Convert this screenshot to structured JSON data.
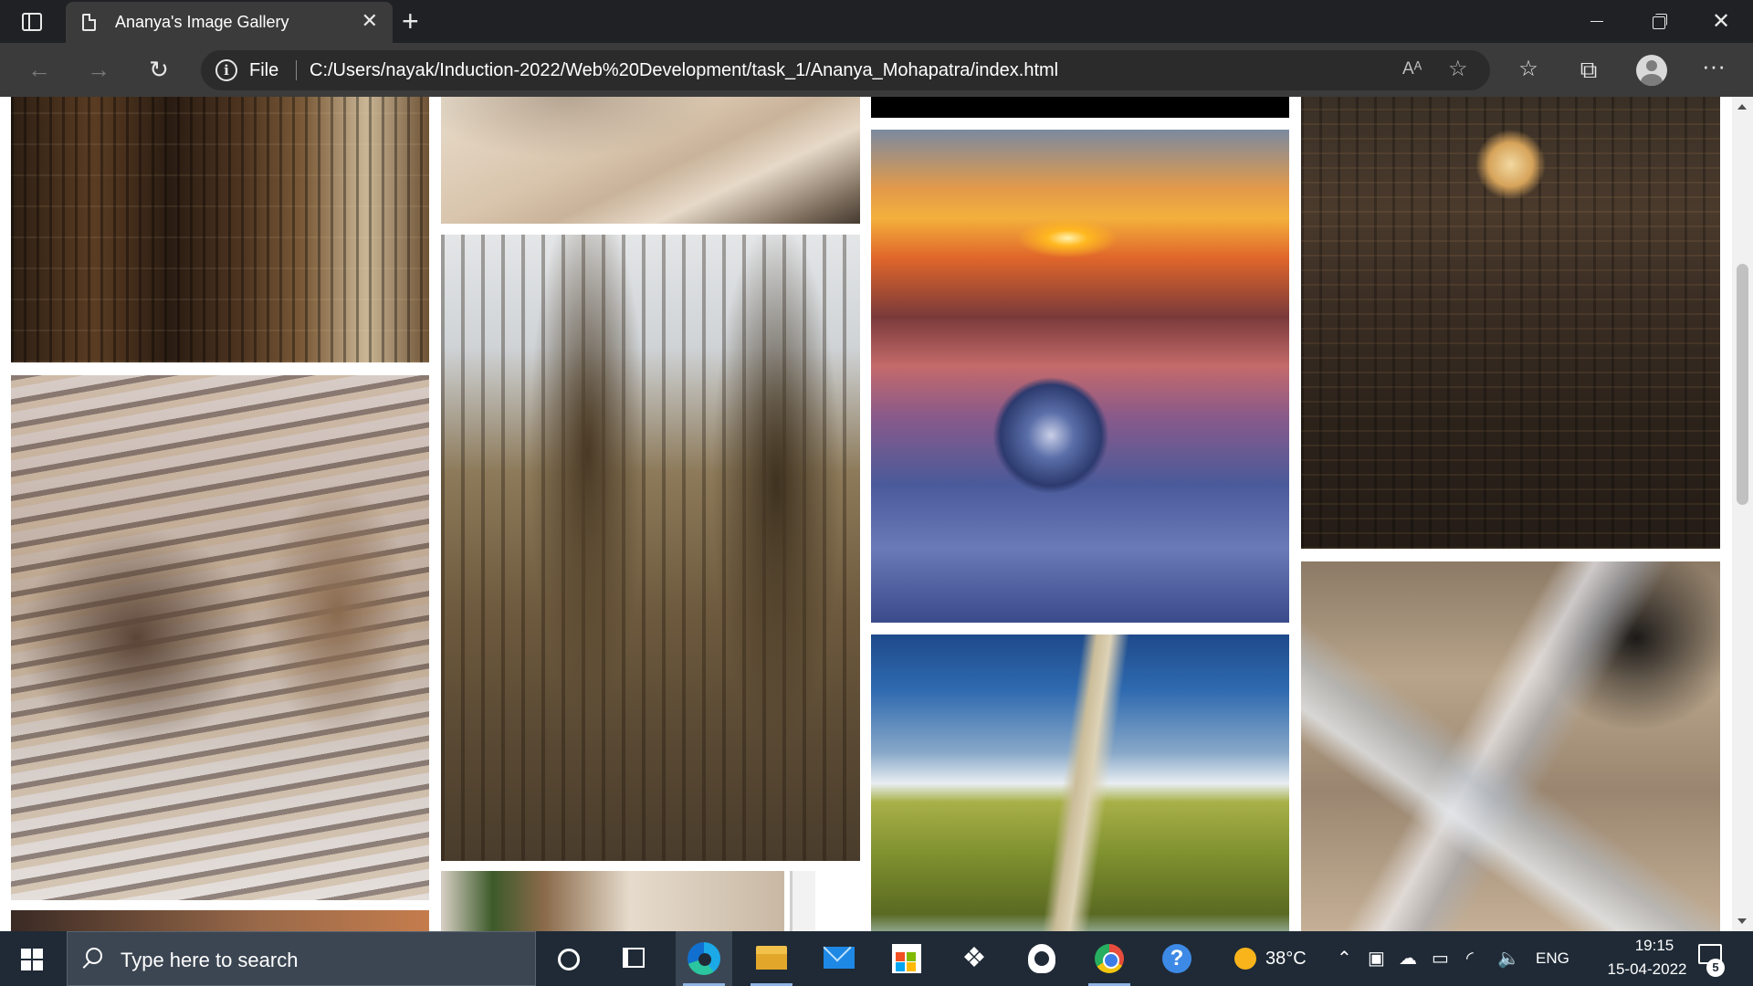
{
  "browser": {
    "tab_title": "Ananya's Image Gallery",
    "tab_close": "✕",
    "new_tab": "+",
    "scheme_label": "File",
    "url": "C:/Users/nayak/Induction-2022/Web%20Development/task_1/Ananya_Mohapatra/index.html",
    "window_close": "✕",
    "icons": [
      "tab-actions-icon",
      "page-icon",
      "back-arrow-icon",
      "forward-arrow-icon",
      "refresh-icon",
      "info-icon",
      "read-aloud-icon",
      "add-favorite-icon",
      "favorites-icon",
      "collections-icon",
      "profile-icon",
      "more-icon"
    ]
  },
  "gallery": {
    "images": [
      {
        "subject": "library-shelves"
      },
      {
        "subject": "books-on-bed"
      },
      {
        "subject": "warm-blur"
      },
      {
        "subject": "curved-architecture"
      },
      {
        "subject": "gothic-cathedral"
      },
      {
        "subject": "plant-room"
      },
      {
        "subject": "black-strip"
      },
      {
        "subject": "sunset-crystal-ball"
      },
      {
        "subject": "countryside-road"
      },
      {
        "subject": "moon-over-city"
      },
      {
        "subject": "quartz-crystals"
      }
    ]
  },
  "taskbar": {
    "search_placeholder": "Type here to search",
    "weather_temp": "38°C",
    "language": "ENG",
    "time": "19:15",
    "date": "15-04-2022",
    "notification_count": "5",
    "colors": {
      "taskbar_bg": "#1f2a36",
      "accent": "#8fb4e3"
    }
  }
}
